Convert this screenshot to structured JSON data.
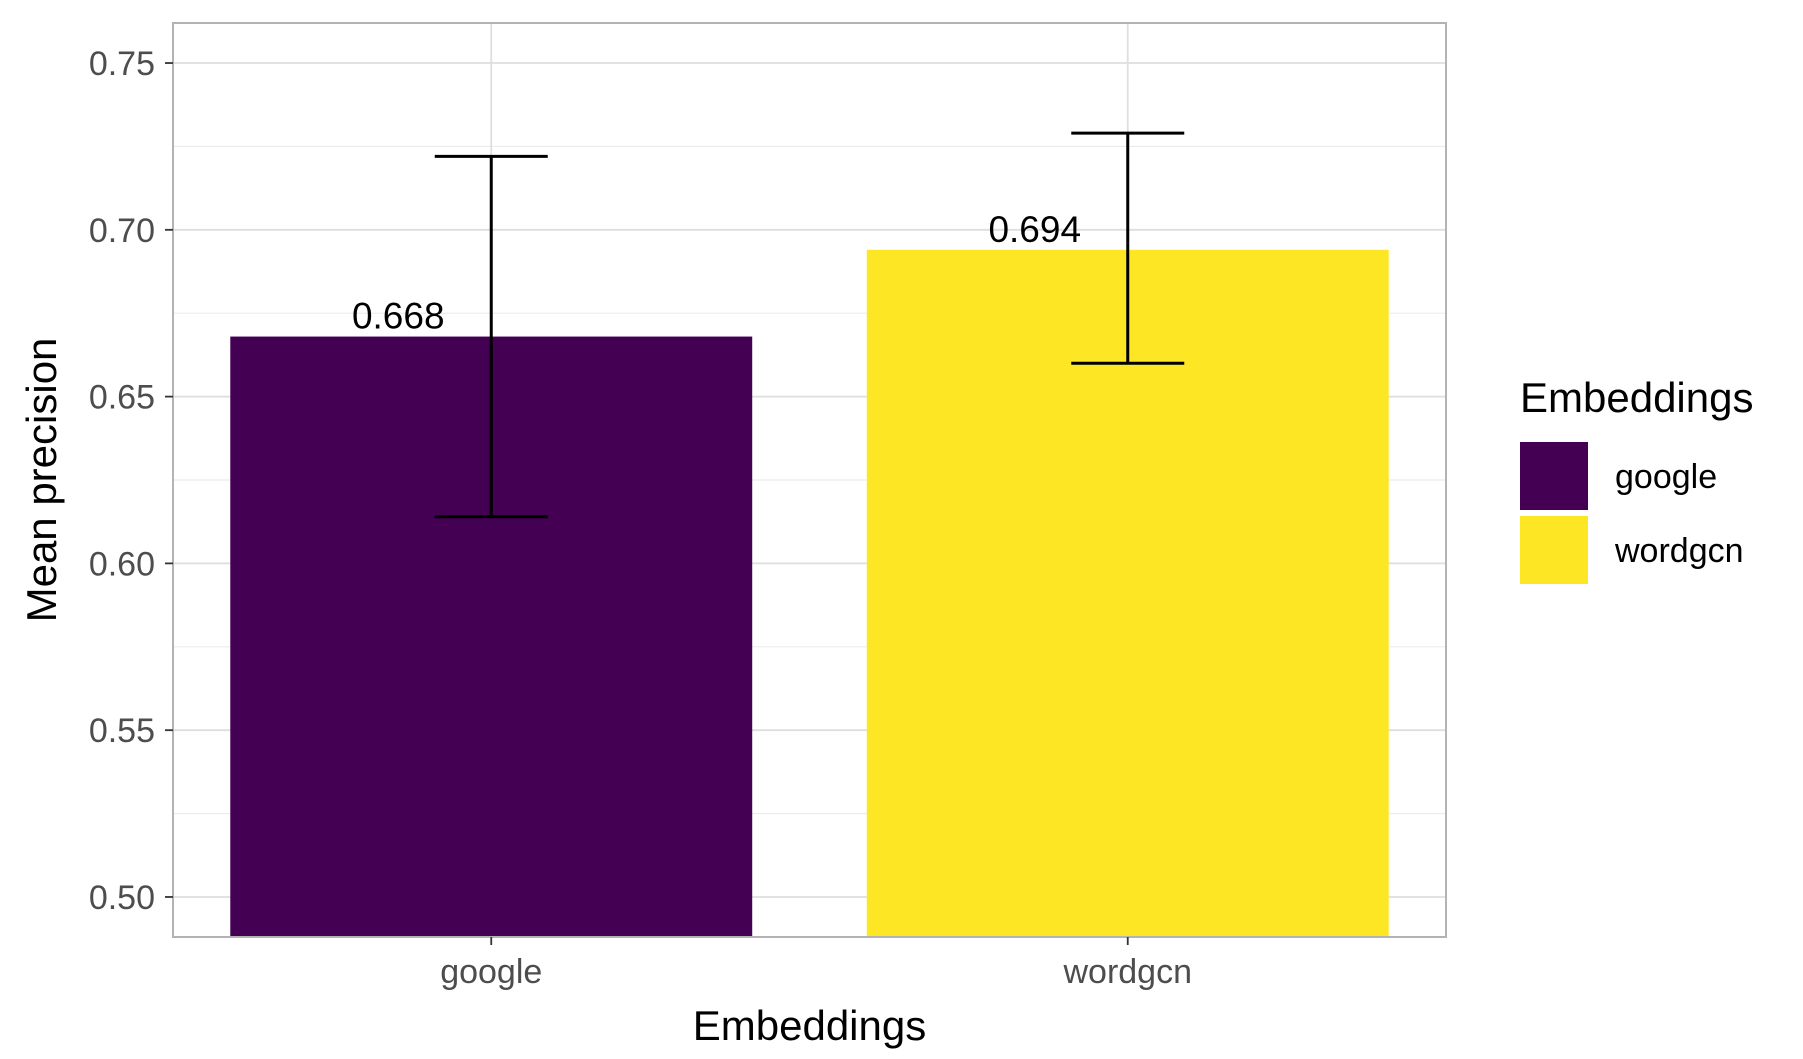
{
  "chart_data": {
    "type": "bar",
    "title": "",
    "xlabel": "Embeddings",
    "ylabel": "Mean precision",
    "categories": [
      "google",
      "wordgcn"
    ],
    "values": [
      0.668,
      0.694
    ],
    "value_labels": [
      "0.668",
      "0.694"
    ],
    "error_bars": [
      {
        "lower": 0.614,
        "upper": 0.722
      },
      {
        "lower": 0.66,
        "upper": 0.729
      }
    ],
    "colors": [
      "#440154",
      "#FDE725"
    ],
    "ylim": [
      0.488,
      0.762
    ],
    "yticks": [
      0.5,
      0.55,
      0.6,
      0.65,
      0.7,
      0.75
    ],
    "ytick_labels": [
      "0.50",
      "0.55",
      "0.60",
      "0.65",
      "0.70",
      "0.75"
    ],
    "grid": true,
    "legend": {
      "title": "Embeddings",
      "position": "right",
      "entries": [
        "google",
        "wordgcn"
      ]
    }
  }
}
